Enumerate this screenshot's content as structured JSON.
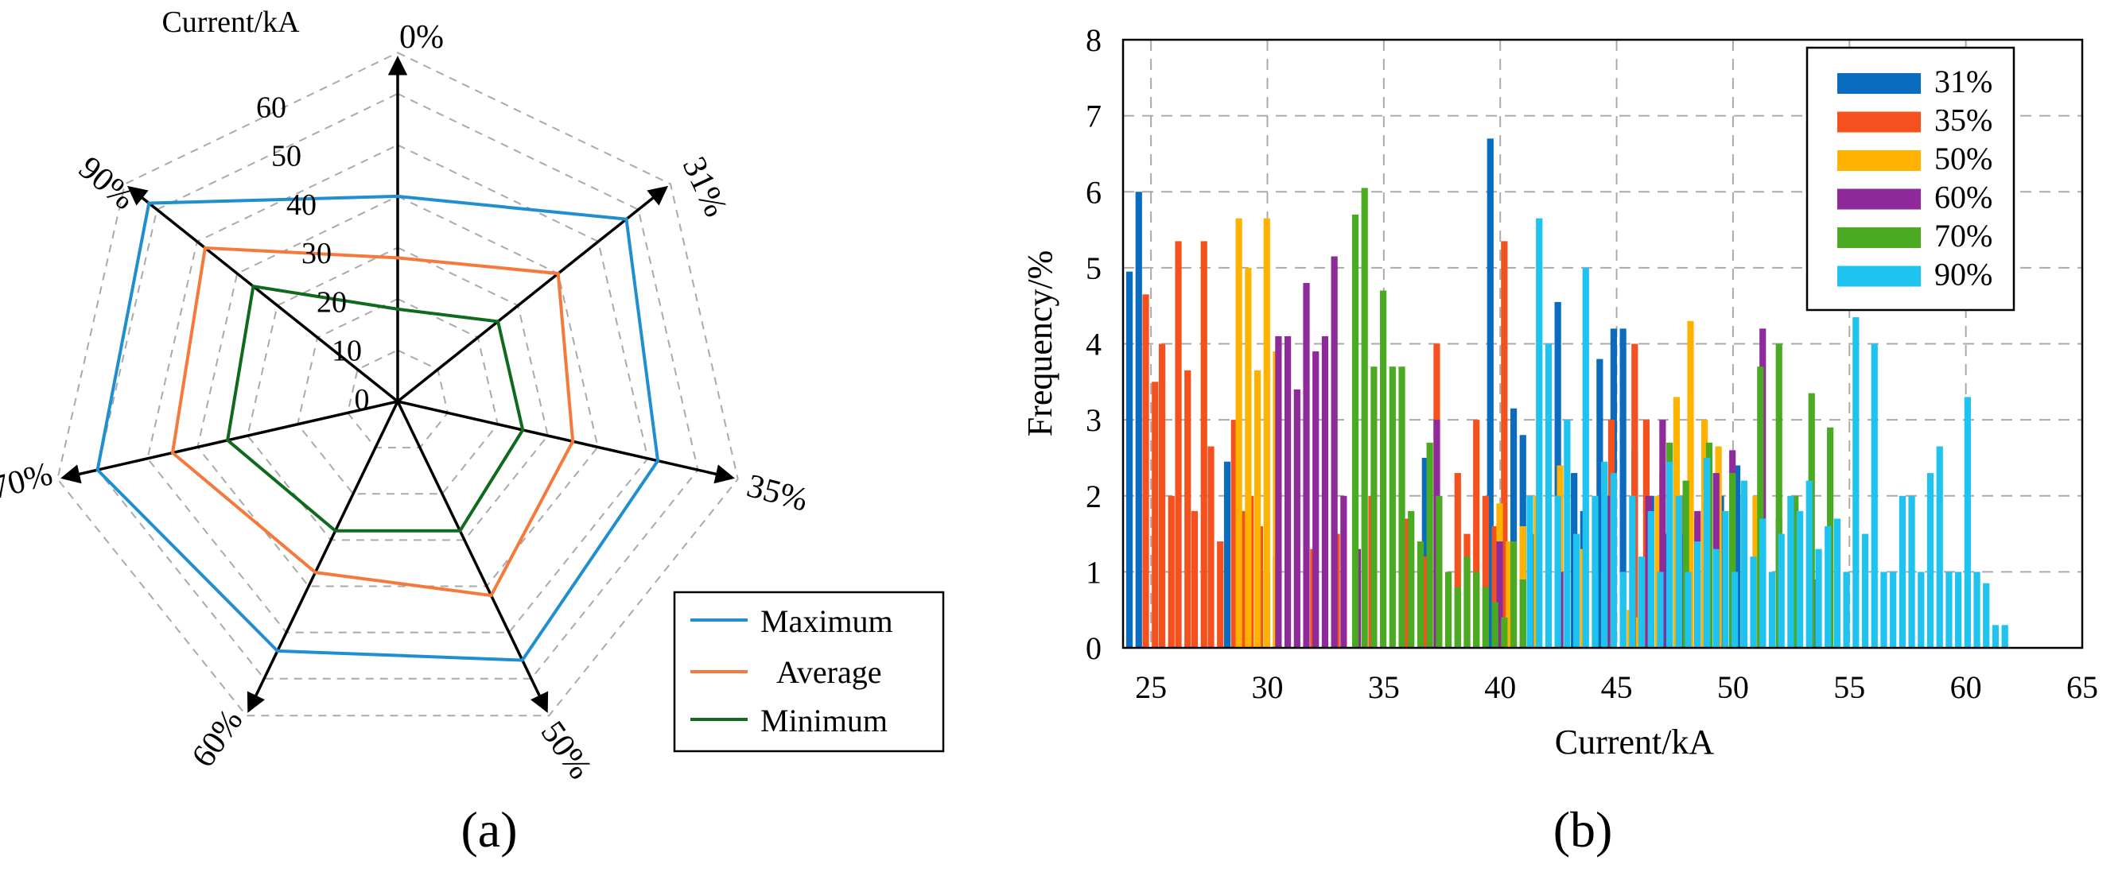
{
  "colors": {
    "max": "#1f8fd0",
    "avg": "#f5793a",
    "min": "#0e6b1e",
    "s31": "#0a6cbf",
    "s35": "#f4511e",
    "s50": "#ffb300",
    "s60": "#8e2a99",
    "s70": "#4aab22",
    "s90": "#1ec3ef",
    "axis": "#000000",
    "grid": "#aaaaaa"
  },
  "panel_labels": {
    "a": "(a)",
    "b": "(b)"
  },
  "chart_data": [
    {
      "type": "radar",
      "panel": "a",
      "radial_label": "Current/kA",
      "radial_ticks": [
        "0",
        "10",
        "20",
        "30",
        "40",
        "50",
        "60"
      ],
      "rlim": [
        0,
        60
      ],
      "grid": true,
      "legend_position": "bottom-right",
      "categories": [
        "0%",
        "31%",
        "35%",
        "50%",
        "60%",
        "70%",
        "90%"
      ],
      "series": [
        {
          "name": "Maximum",
          "color_key": "max",
          "values": [
            40,
            57,
            52,
            56,
            54,
            60,
            62
          ]
        },
        {
          "name": "Average",
          "color_key": "avg",
          "values": [
            28,
            40,
            35,
            42,
            37,
            45,
            48
          ]
        },
        {
          "name": "Minimum",
          "color_key": "min",
          "values": [
            18,
            25,
            25,
            28,
            28,
            34,
            36
          ]
        }
      ]
    },
    {
      "type": "bar",
      "panel": "b",
      "xlabel": "Current/kA",
      "ylabel": "Frequency/%",
      "xlim": [
        23.8,
        65
      ],
      "ylim": [
        0,
        8
      ],
      "xticks": [
        25,
        30,
        35,
        40,
        45,
        50,
        55,
        60,
        65
      ],
      "yticks": [
        0,
        1,
        2,
        3,
        4,
        5,
        6,
        7,
        8
      ],
      "grid": true,
      "legend_position": "top-right",
      "bin_width": 0.33,
      "series": [
        {
          "name": "31%",
          "color_key": "s31",
          "x": [
            24.1,
            24.5,
            28.3,
            36.8,
            39.6,
            40.6,
            41.0,
            41.5,
            42.5,
            43.2,
            43.6,
            44.3,
            44.9,
            45.3,
            45.8,
            46.5,
            47.2,
            48.0,
            48.8,
            49.5,
            50.2
          ],
          "y": [
            4.95,
            6.0,
            2.45,
            2.5,
            6.7,
            3.15,
            2.8,
            1.5,
            4.55,
            2.3,
            1.8,
            3.8,
            4.2,
            4.2,
            2.6,
            2.0,
            1.5,
            1.2,
            0.9,
            2.0,
            2.4
          ]
        },
        {
          "name": "35%",
          "color_key": "s35",
          "x": [
            24.8,
            25.2,
            25.5,
            25.9,
            26.2,
            26.6,
            26.9,
            27.3,
            27.6,
            28.0,
            28.6,
            29.0,
            29.3,
            29.7,
            30.0,
            30.4,
            32.0,
            33.0,
            34.5,
            36.0,
            36.8,
            37.3,
            38.2,
            38.6,
            39.0,
            39.4,
            39.8,
            40.2,
            44.8,
            45.8,
            46.3,
            47.0,
            47.8,
            48.5,
            49.3
          ],
          "y": [
            4.65,
            3.5,
            4.0,
            2.0,
            5.35,
            3.65,
            1.8,
            5.35,
            2.65,
            1.4,
            3.0,
            1.8,
            2.0,
            1.6,
            1.0,
            1.2,
            1.3,
            1.5,
            2.0,
            1.7,
            1.2,
            4.0,
            2.3,
            1.5,
            3.0,
            2.0,
            1.6,
            5.35,
            3.0,
            4.0,
            3.0,
            2.3,
            2.0,
            1.7,
            1.3
          ]
        },
        {
          "name": "50%",
          "color_key": "s50",
          "x": [
            28.8,
            29.2,
            29.6,
            30.0,
            30.4,
            40.0,
            40.4,
            41.0,
            41.6,
            42.6,
            43.6,
            44.5,
            45.6,
            46.0,
            46.8,
            47.6,
            48.2,
            48.8,
            49.4,
            50.0,
            51.0
          ],
          "y": [
            5.65,
            5.0,
            3.65,
            5.65,
            3.9,
            1.9,
            1.4,
            1.6,
            2.0,
            2.4,
            1.3,
            1.0,
            0.5,
            0.4,
            2.0,
            3.3,
            4.3,
            3.0,
            2.65,
            1.7,
            2.0
          ]
        },
        {
          "name": "60%",
          "color_key": "s60",
          "x": [
            30.5,
            30.9,
            31.3,
            31.7,
            32.1,
            32.5,
            32.9,
            33.3,
            33.9,
            37.3,
            40.0,
            42.6,
            44.6,
            46.4,
            47.0,
            47.8,
            48.5,
            49.3,
            50.0,
            50.5,
            51.3,
            52.0,
            52.8,
            53.5
          ],
          "y": [
            4.1,
            4.1,
            3.4,
            4.8,
            3.9,
            4.1,
            5.15,
            2.0,
            1.3,
            3.0,
            1.4,
            1.0,
            2.0,
            2.0,
            3.0,
            1.5,
            1.8,
            2.3,
            2.6,
            2.0,
            4.2,
            1.7,
            1.1,
            0.9
          ]
        },
        {
          "name": "70%",
          "color_key": "s70",
          "x": [
            33.8,
            34.2,
            34.6,
            35.0,
            35.4,
            35.8,
            36.2,
            36.6,
            37.0,
            37.4,
            37.8,
            38.2,
            38.6,
            39.0,
            39.4,
            39.8,
            40.2,
            40.6,
            41.0,
            46.5,
            47.3,
            48.0,
            49.0,
            50.0,
            50.5,
            51.2,
            52.0,
            52.7,
            53.4,
            54.2
          ],
          "y": [
            5.7,
            6.05,
            3.7,
            4.7,
            3.7,
            3.7,
            1.8,
            1.4,
            2.7,
            2.0,
            1.0,
            0.8,
            1.2,
            1.0,
            0.8,
            0.6,
            0.4,
            1.4,
            0.9,
            0.3,
            2.7,
            2.2,
            2.7,
            2.3,
            1.8,
            3.7,
            4.0,
            2.0,
            3.35,
            2.9
          ]
        },
        {
          "name": "90%",
          "color_key": "s90",
          "x": [
            41.3,
            41.7,
            42.1,
            42.5,
            42.9,
            43.3,
            43.7,
            44.1,
            44.5,
            44.9,
            45.3,
            45.7,
            46.1,
            46.5,
            46.9,
            47.3,
            47.7,
            48.1,
            48.5,
            48.9,
            49.3,
            49.7,
            50.1,
            50.5,
            50.9,
            51.3,
            51.7,
            52.1,
            52.5,
            52.9,
            53.3,
            53.7,
            54.1,
            54.5,
            54.9,
            55.3,
            55.7,
            56.1,
            56.5,
            56.9,
            57.3,
            57.7,
            58.1,
            58.5,
            58.9,
            59.3,
            59.7,
            60.1,
            60.5,
            60.9,
            61.3,
            61.7
          ],
          "y": [
            2.0,
            5.65,
            4.0,
            2.0,
            3.0,
            1.5,
            5.0,
            2.0,
            2.45,
            2.3,
            1.0,
            2.0,
            1.2,
            1.8,
            1.0,
            2.45,
            2.0,
            1.0,
            1.4,
            2.5,
            1.3,
            1.8,
            1.0,
            2.2,
            1.2,
            1.7,
            1.0,
            1.5,
            2.0,
            1.8,
            2.2,
            1.3,
            1.6,
            1.7,
            1.0,
            4.35,
            1.5,
            4.0,
            1.0,
            1.0,
            2.0,
            2.0,
            1.0,
            2.3,
            2.65,
            1.0,
            1.0,
            3.3,
            1.0,
            0.85,
            0.3,
            0.3
          ]
        }
      ]
    }
  ]
}
